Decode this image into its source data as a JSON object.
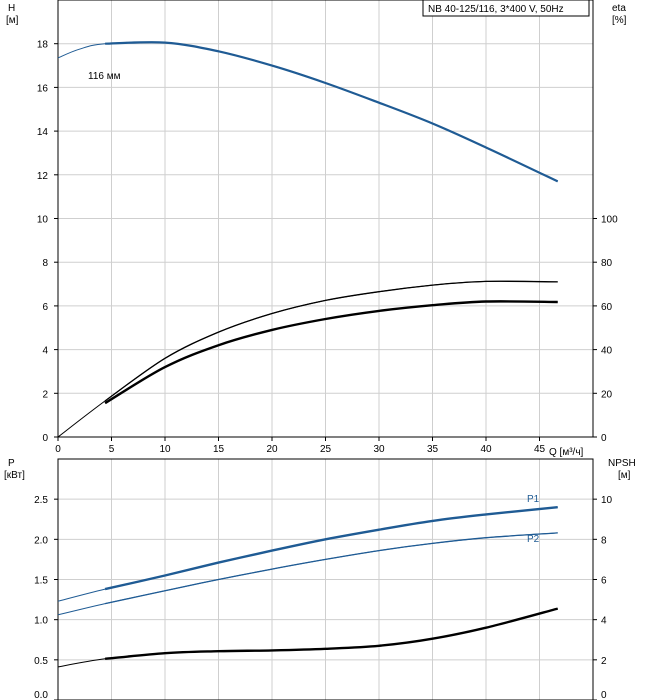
{
  "header": {
    "title": "NB 40-125/116, 3*400 V, 50Hz"
  },
  "top_panel": {
    "left_axis": {
      "label": "H",
      "unit": "[м]"
    },
    "right_axis": {
      "label": "eta",
      "unit": "[%]"
    },
    "x_axis": {
      "label": "Q [м³/ч]"
    },
    "curve_label": "116 мм"
  },
  "bottom_panel": {
    "left_axis": {
      "label": "P",
      "unit": "[кВт]"
    },
    "right_axis": {
      "label": "NPSH",
      "unit": "[м]"
    },
    "p1_label": "P1",
    "p2_label": "P2"
  },
  "colors": {
    "pump_blue": "#1f5b94",
    "grid": "#cfcfcf",
    "black": "#000000"
  },
  "chart_data": [
    {
      "type": "line",
      "title": "NB 40-125/116, 3*400 V, 50Hz",
      "xlabel": "Q [м³/ч]",
      "ylabel": "H [м]",
      "y2label": "eta [%]",
      "xlim": [
        0,
        50
      ],
      "ylim": [
        0,
        20
      ],
      "y2lim": [
        0,
        200
      ],
      "x_ticks": [
        0,
        5,
        10,
        15,
        20,
        25,
        30,
        35,
        40,
        45
      ],
      "y_ticks": [
        0,
        2,
        4,
        6,
        8,
        10,
        12,
        14,
        16,
        18
      ],
      "y2_ticks": [
        0,
        20,
        40,
        60,
        80,
        100
      ],
      "grid": true,
      "series": [
        {
          "name": "116 мм",
          "axis": "left",
          "color": "#1f5b94",
          "x": [
            0,
            2,
            4.4,
            10,
            15,
            20,
            25,
            30,
            35,
            40,
            46.7
          ],
          "y": [
            17.35,
            17.75,
            18.0,
            18.05,
            17.65,
            17.0,
            16.2,
            15.3,
            14.35,
            13.25,
            11.7
          ]
        },
        {
          "name": "",
          "axis": "right",
          "color": "#000000",
          "x": [
            0,
            4.4,
            10,
            15,
            20,
            25,
            30,
            35,
            40,
            46.7
          ],
          "y": [
            0,
            16.5,
            36,
            48,
            56.5,
            62.5,
            66.5,
            69.5,
            71.2,
            71
          ]
        },
        {
          "name": "",
          "axis": "right",
          "color": "#000000",
          "x": [
            4.4,
            10,
            15,
            20,
            25,
            30,
            35,
            40,
            46.7
          ],
          "y": [
            15.5,
            32,
            42,
            49,
            54,
            57.7,
            60.3,
            62,
            61.8
          ]
        }
      ]
    },
    {
      "type": "line",
      "xlabel": "",
      "ylabel": "P [кВт]",
      "y2label": "NPSH [м]",
      "xlim": [
        0,
        50
      ],
      "ylim": [
        0,
        3.0
      ],
      "y2lim": [
        0,
        12
      ],
      "y_ticks": [
        0.0,
        0.5,
        1.0,
        1.5,
        2.0,
        2.5
      ],
      "y_tick_labels": [
        "0.0",
        "0.5",
        "1.0",
        "1.5",
        "2.0",
        "2.5"
      ],
      "y2_ticks": [
        0,
        2,
        4,
        6,
        8,
        10
      ],
      "grid": true,
      "series": [
        {
          "name": "P1",
          "axis": "left",
          "color": "#1f5b94",
          "x": [
            0,
            4.4,
            10,
            15,
            20,
            25,
            30,
            35,
            40,
            46.7
          ],
          "y": [
            1.23,
            1.38,
            1.55,
            1.71,
            1.86,
            2.0,
            2.12,
            2.23,
            2.31,
            2.4
          ]
        },
        {
          "name": "P2",
          "axis": "left",
          "color": "#1f5b94",
          "x": [
            0,
            4.4,
            10,
            15,
            20,
            25,
            30,
            35,
            40,
            46.7
          ],
          "y": [
            1.06,
            1.2,
            1.36,
            1.5,
            1.63,
            1.75,
            1.86,
            1.95,
            2.02,
            2.08
          ]
        },
        {
          "name": "",
          "axis": "right",
          "color": "#000000",
          "x": [
            0,
            4.4,
            10,
            15,
            20,
            25,
            30,
            35,
            40,
            46.7
          ],
          "y": [
            1.65,
            2.05,
            2.33,
            2.43,
            2.47,
            2.55,
            2.7,
            3.05,
            3.6,
            4.55
          ]
        }
      ]
    }
  ]
}
